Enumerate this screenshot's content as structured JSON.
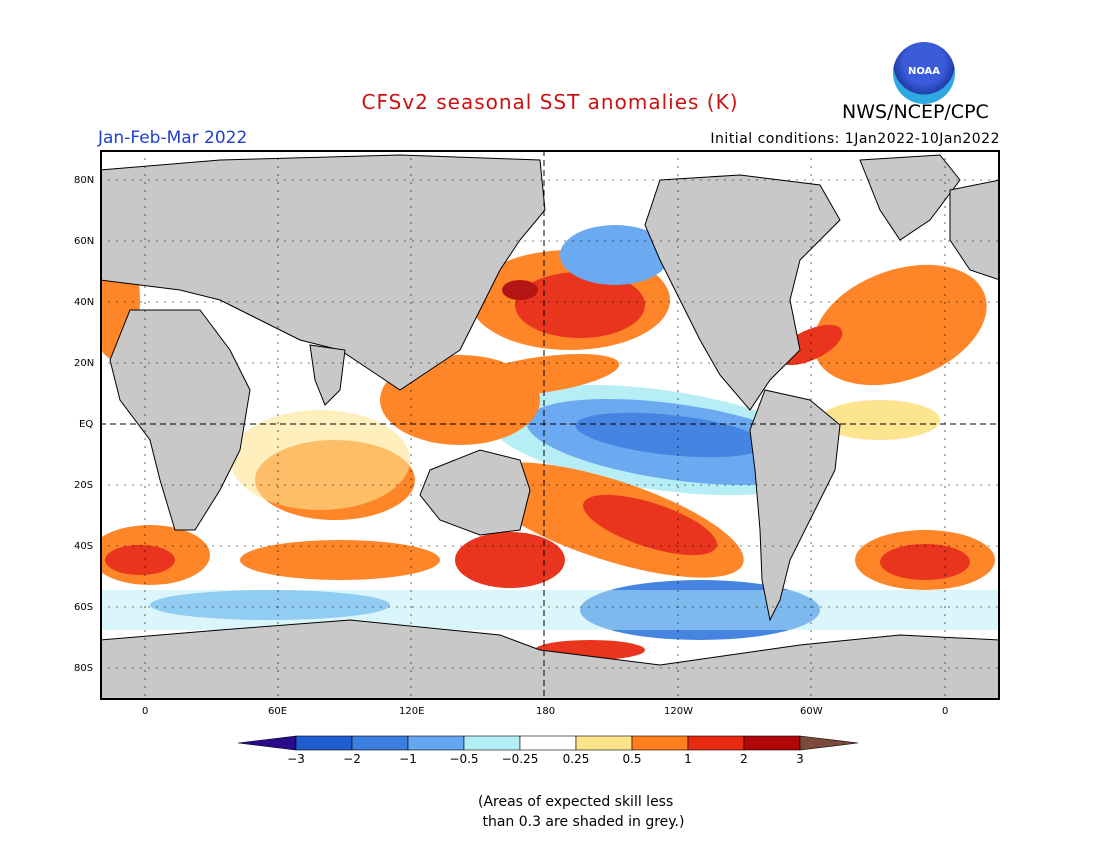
{
  "header": {
    "title": "CFSv2 seasonal SST anomalies (K)",
    "season": "Jan-Feb-Mar 2022",
    "initial_conditions": "Initial conditions: 1Jan2022-10Jan2022",
    "agency": "NWS/NCEP/CPC",
    "logo_text": "NOAA"
  },
  "colors": {
    "title": "#cc1111",
    "season": "#1f3fcf",
    "land": "#c8c8c8",
    "ocean_neutral": "#ffffff"
  },
  "map": {
    "lat_labels": [
      "80N",
      "60N",
      "40N",
      "20N",
      "EQ",
      "20S",
      "40S",
      "60S",
      "80S"
    ],
    "lon_labels": [
      "0",
      "60E",
      "120E",
      "180",
      "120W",
      "60W",
      "0"
    ]
  },
  "colorbar": {
    "tick_labels": [
      "-3",
      "-2",
      "-1",
      "-0.5",
      "-0.25",
      "0.25",
      "0.5",
      "1",
      "2",
      "3"
    ],
    "colors": [
      "#2a0a8c",
      "#1e5fcf",
      "#3b7fe0",
      "#64a6f0",
      "#b4eef5",
      "#ffffff",
      "#fde38a",
      "#ff7f1e",
      "#e82a12",
      "#b00808",
      "#7a4a3a"
    ]
  },
  "footnote": "(Areas of expected skill less\n than 0.3 are shaded in grey.)"
}
